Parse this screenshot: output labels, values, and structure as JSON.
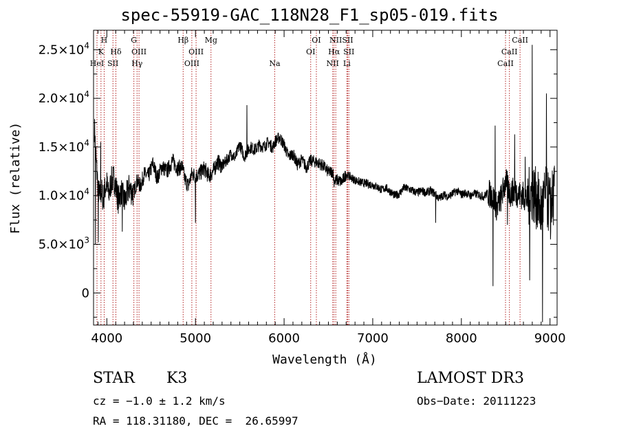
{
  "chart_data": {
    "type": "line",
    "title": "spec-55919-GAC_118N28_F1_sp05-019.fits",
    "xlabel": "Wavelength (Å)",
    "ylabel": "Flux (relative)",
    "xlim": [
      3850,
      9080
    ],
    "ylim": [
      -3300,
      27000
    ],
    "xticks": [
      4000,
      5000,
      6000,
      7000,
      8000,
      9000
    ],
    "xtick_labels": [
      "4000",
      "5000",
      "6000",
      "7000",
      "8000",
      "9000"
    ],
    "yticks": [
      0,
      5000,
      10000,
      15000,
      20000,
      25000
    ],
    "ytick_labels": [
      {
        "id": "yt0",
        "mantissa": "0",
        "exp": ""
      },
      {
        "id": "yt1",
        "mantissa": "5.0×10",
        "exp": "3"
      },
      {
        "id": "yt2",
        "mantissa": "1.0×10",
        "exp": "4"
      },
      {
        "id": "yt3",
        "mantissa": "1.5×10",
        "exp": "4"
      },
      {
        "id": "yt4",
        "mantissa": "2.0×10",
        "exp": "4"
      },
      {
        "id": "yt5",
        "mantissa": "2.5×10",
        "exp": "4"
      }
    ],
    "grid": false,
    "series": [
      {
        "color": "#000000",
        "x": [
          3860,
          3880,
          3900,
          3920,
          3940,
          3960,
          3980,
          4000,
          4020,
          4050,
          4080,
          4100,
          4130,
          4160,
          4200,
          4250,
          4300,
          4340,
          4380,
          4420,
          4470,
          4520,
          4570,
          4620,
          4680,
          4740,
          4800,
          4850,
          4880,
          4920,
          4960,
          5000,
          5050,
          5100,
          5150,
          5200,
          5250,
          5300,
          5350,
          5400,
          5450,
          5500,
          5550,
          5580,
          5620,
          5670,
          5720,
          5770,
          5820,
          5870,
          5900,
          5950,
          6000,
          6050,
          6100,
          6150,
          6200,
          6250,
          6300,
          6350,
          6400,
          6450,
          6500,
          6550,
          6563,
          6600,
          6650,
          6700,
          6750,
          6800,
          6850,
          6900,
          6950,
          7000,
          7050,
          7100,
          7150,
          7200,
          7250,
          7300,
          7350,
          7400,
          7450,
          7500,
          7550,
          7600,
          7650,
          7700,
          7750,
          7800,
          7850,
          7900,
          7950,
          8000,
          8050,
          8100,
          8150,
          8200,
          8250,
          8300,
          8350,
          8400,
          8450,
          8500,
          8550,
          8600,
          8650,
          8700,
          8750,
          8800,
          8850,
          8900,
          8950,
          9000,
          9050
        ],
        "y": [
          17000,
          13500,
          11000,
          9800,
          10500,
          9500,
          10800,
          11200,
          10000,
          11500,
          11800,
          11000,
          9500,
          10500,
          9300,
          10800,
          10200,
          11500,
          11000,
          12200,
          12000,
          13300,
          11800,
          13000,
          12500,
          13600,
          12800,
          13000,
          11700,
          11000,
          12300,
          12000,
          12300,
          12800,
          12000,
          12500,
          13500,
          13000,
          13600,
          14300,
          13900,
          15300,
          14000,
          14500,
          15000,
          14700,
          15200,
          15000,
          15500,
          14900,
          15600,
          16000,
          15200,
          14000,
          14300,
          13200,
          13700,
          12900,
          13600,
          13500,
          13300,
          13000,
          12400,
          12500,
          11500,
          11600,
          11400,
          12200,
          11900,
          11600,
          11400,
          11300,
          11200,
          11100,
          10900,
          10600,
          10800,
          10400,
          10000,
          10200,
          10800,
          10700,
          10500,
          10300,
          10500,
          10300,
          10500,
          10200,
          9700,
          10100,
          9900,
          10200,
          10500,
          10100,
          10300,
          10000,
          10200,
          10100,
          9900,
          10300,
          10000,
          8800,
          9800,
          11500,
          10200,
          10500,
          10100,
          10000,
          9500,
          10500,
          9600,
          8500,
          10000,
          9000,
          10200
        ]
      }
    ],
    "line_markers": [
      {
        "id": "ln-hei",
        "label": "HeI",
        "x": 3889,
        "row": 3
      },
      {
        "id": "ln-h",
        "label": "H",
        "x": 3970,
        "row": 1
      },
      {
        "id": "ln-k",
        "label": "K",
        "x": 3934,
        "row": 2
      },
      {
        "id": "ln-sii-1",
        "label": "SII",
        "x": 4069,
        "row": 3
      },
      {
        "id": "ln-hdelta",
        "label": "Hδ",
        "x": 4102,
        "row": 2
      },
      {
        "id": "ln-g",
        "label": "G",
        "x": 4305,
        "row": 1
      },
      {
        "id": "ln-oiii-1",
        "label": "OIII",
        "x": 4363,
        "row": 2
      },
      {
        "id": "ln-hgamma",
        "label": "Hγ",
        "x": 4341,
        "row": 3
      },
      {
        "id": "ln-hbeta",
        "label": "Hβ",
        "x": 4861,
        "row": 1
      },
      {
        "id": "ln-oiii-2",
        "label": "OIII",
        "x": 5007,
        "row": 2
      },
      {
        "id": "ln-oiii-3",
        "label": "OIII",
        "x": 4959,
        "row": 3
      },
      {
        "id": "ln-mg",
        "label": "Mg",
        "x": 5175,
        "row": 1
      },
      {
        "id": "ln-na",
        "label": "Na",
        "x": 5894,
        "row": 3
      },
      {
        "id": "ln-oi-1",
        "label": "OI",
        "x": 6364,
        "row": 1
      },
      {
        "id": "ln-oi-2",
        "label": "OI",
        "x": 6300,
        "row": 2
      },
      {
        "id": "ln-nii-1",
        "label": "NII",
        "x": 6583,
        "row": 1
      },
      {
        "id": "ln-nii-2",
        "label": "NII",
        "x": 6548,
        "row": 3
      },
      {
        "id": "ln-halpha",
        "label": "Hα",
        "x": 6563,
        "row": 2
      },
      {
        "id": "ln-sii-2",
        "label": "SII",
        "x": 6717,
        "row": 1
      },
      {
        "id": "ln-sii-3",
        "label": "SII",
        "x": 6731,
        "row": 2
      },
      {
        "id": "ln-li",
        "label": "Li",
        "x": 6708,
        "row": 3
      },
      {
        "id": "ln-caii-1",
        "label": "CaII",
        "x": 8662,
        "row": 1
      },
      {
        "id": "ln-caii-2",
        "label": "CaII",
        "x": 8542,
        "row": 2
      },
      {
        "id": "ln-caii-3",
        "label": "CaII",
        "x": 8498,
        "row": 3
      }
    ],
    "line_color": "#b22222",
    "spikes": [
      {
        "x": 3872,
        "y": 5000
      },
      {
        "x": 3905,
        "y": 5200
      },
      {
        "x": 3930,
        "y": 15500
      },
      {
        "x": 4175,
        "y": 6300
      },
      {
        "x": 5580,
        "y": 19300
      },
      {
        "x": 5000,
        "y": 7200
      },
      {
        "x": 7710,
        "y": 7200
      },
      {
        "x": 8357,
        "y": 700
      },
      {
        "x": 8380,
        "y": 17200
      },
      {
        "x": 8520,
        "y": 7000
      },
      {
        "x": 8600,
        "y": 16300
      },
      {
        "x": 8720,
        "y": 14000
      },
      {
        "x": 8770,
        "y": 1300
      },
      {
        "x": 8800,
        "y": 25500
      },
      {
        "x": 8850,
        "y": 7000
      },
      {
        "x": 8915,
        "y": -3000
      },
      {
        "x": 8960,
        "y": 20500
      },
      {
        "x": 9005,
        "y": 5500
      }
    ]
  },
  "info": {
    "class": "STAR",
    "subclass": "K3",
    "survey": "LAMOST DR3",
    "cz": "cz = −1.0 ± 1.2 km/s",
    "obs_date": "Obs−Date: 20111223",
    "radec": "RA = 118.31180, DEC =  26.65997"
  }
}
